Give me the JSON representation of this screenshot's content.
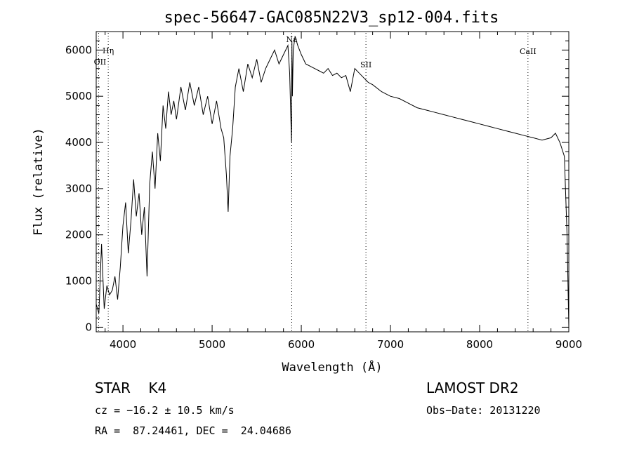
{
  "chart_data": {
    "type": "line",
    "title": "spec-56647-GAC085N22V3_sp12-004.fits",
    "xlabel": "Wavelength (Å)",
    "ylabel": "Flux (relative)",
    "xlim": [
      3700,
      9000
    ],
    "ylim": [
      -100,
      6400
    ],
    "x_ticks": [
      4000,
      5000,
      6000,
      7000,
      8000,
      9000
    ],
    "y_ticks": [
      0,
      1000,
      2000,
      3000,
      4000,
      5000,
      6000
    ],
    "grid": false,
    "series": [
      {
        "x": [
          3700,
          3730,
          3760,
          3790,
          3820,
          3850,
          3880,
          3910,
          3940,
          3970,
          4000,
          4030,
          4060,
          4090,
          4120,
          4150,
          4180,
          4210,
          4240,
          4270,
          4300,
          4330,
          4360,
          4390,
          4420,
          4450,
          4480,
          4510,
          4540,
          4570,
          4600,
          4650,
          4700,
          4750,
          4800,
          4850,
          4900,
          4950,
          5000,
          5050,
          5100,
          5130,
          5160,
          5180,
          5200,
          5230,
          5260,
          5300,
          5350,
          5400,
          5450,
          5500,
          5550,
          5600,
          5650,
          5700,
          5750,
          5800,
          5850,
          5870,
          5890,
          5895,
          5900,
          5910,
          5930,
          5960,
          6000,
          6050,
          6100,
          6150,
          6200,
          6250,
          6300,
          6350,
          6400,
          6450,
          6500,
          6550,
          6600,
          6650,
          6700,
          6750,
          6800,
          6900,
          7000,
          7100,
          7200,
          7300,
          7400,
          7500,
          7600,
          7700,
          7800,
          7900,
          8000,
          8100,
          8200,
          8300,
          8400,
          8500,
          8600,
          8700,
          8800,
          8850,
          8900,
          8950,
          8980,
          9000
        ],
        "y": [
          500,
          300,
          1800,
          400,
          900,
          700,
          800,
          1100,
          600,
          1300,
          2200,
          2700,
          1600,
          2300,
          3200,
          2400,
          2900,
          2000,
          2600,
          1100,
          3100,
          3800,
          3000,
          4200,
          3600,
          4800,
          4300,
          5100,
          4600,
          4900,
          4500,
          5200,
          4700,
          5300,
          4800,
          5200,
          4600,
          5000,
          4400,
          4900,
          4300,
          4100,
          3300,
          2500,
          3700,
          4300,
          5200,
          5600,
          5100,
          5700,
          5400,
          5800,
          5300,
          5600,
          5800,
          6000,
          5700,
          5900,
          6100,
          5500,
          4000,
          6200,
          5000,
          6000,
          6300,
          6100,
          5900,
          5700,
          5650,
          5600,
          5550,
          5500,
          5600,
          5450,
          5500,
          5400,
          5450,
          5100,
          5600,
          5500,
          5400,
          5300,
          5250,
          5100,
          5000,
          4950,
          4850,
          4750,
          4700,
          4650,
          4600,
          4550,
          4500,
          4450,
          4400,
          4350,
          4300,
          4250,
          4200,
          4150,
          4100,
          4050,
          4100,
          4200,
          4000,
          3700,
          2000,
          0
        ]
      }
    ],
    "annotations": [
      {
        "label": "Hη",
        "x": 3835
      },
      {
        "label": "OII",
        "x": 3727
      },
      {
        "label": "Na",
        "x": 5893
      },
      {
        "label": "SII",
        "x": 6725
      },
      {
        "label": "CaII",
        "x": 8542
      }
    ]
  },
  "info": {
    "object": "STAR    K4",
    "survey": "LAMOST DR2",
    "cz": "cz = −16.2 ± 10.5 km/s",
    "obs_date": "Obs−Date: 20131220",
    "coords": "RA =  87.24461, DEC =  24.04686"
  }
}
